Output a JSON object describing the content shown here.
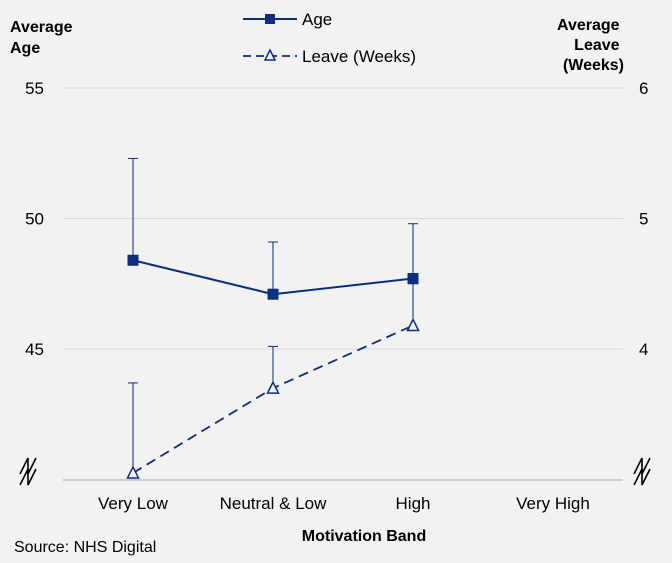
{
  "chart_data": {
    "type": "line",
    "categories": [
      "Very Low",
      "Neutral & Low",
      "High",
      "Very High"
    ],
    "xlabel": "Motivation Band",
    "ylabel_left": [
      "Average",
      "Age"
    ],
    "ylabel_right": [
      "Average",
      "Leave",
      "(Weeks)"
    ],
    "left_axis": {
      "ticks": [
        "55",
        "50",
        "45"
      ],
      "ylim": [
        40,
        55
      ],
      "break_marker": true
    },
    "right_axis": {
      "ticks": [
        "6",
        "5",
        "4"
      ],
      "ylim": [
        3,
        6
      ],
      "break_marker": true
    },
    "series": [
      {
        "name": "Age",
        "axis": "left",
        "style": "solid",
        "marker": "filled-square",
        "values": [
          48.4,
          47.1,
          47.7,
          null
        ],
        "error_upper": [
          52.3,
          49.1,
          49.8,
          null
        ],
        "error_lower": [
          null,
          null,
          null,
          null
        ]
      },
      {
        "name": "Leave (Weeks)",
        "axis": "right",
        "style": "dashed",
        "marker": "open-triangle",
        "values": [
          3.05,
          3.7,
          4.18,
          null
        ],
        "error_upper": [
          3.74,
          4.02,
          4.5,
          null
        ],
        "error_lower": [
          null,
          null,
          null,
          null
        ]
      }
    ],
    "legend_position": "top-center",
    "grid": "horizontal",
    "colors": {
      "line": "#0b2f7d",
      "axis": "#a6a6a6",
      "grid": "#d9d9d9",
      "background": "#f2f2f2"
    }
  },
  "source": "Source: NHS Digital"
}
